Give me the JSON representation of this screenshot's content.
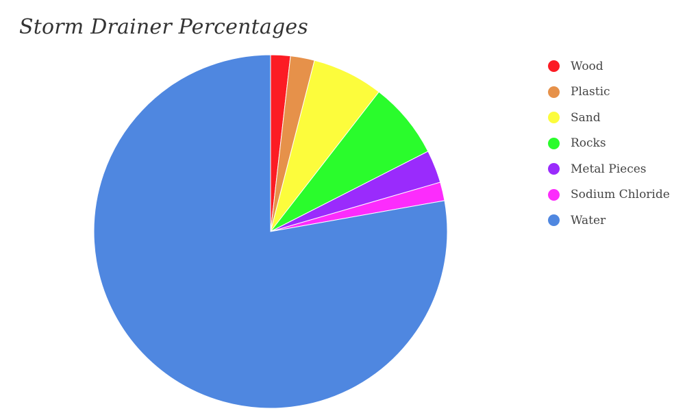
{
  "chart_data": {
    "type": "pie",
    "title": "Storm Drainer Percentages",
    "legend_position": "right",
    "start_angle_deg": 0,
    "slices": [
      {
        "label": "Wood",
        "value": 1.8,
        "color": "#fc1c24"
      },
      {
        "label": "Plastic",
        "value": 2.2,
        "color": "#e6914a"
      },
      {
        "label": "Sand",
        "value": 6.5,
        "color": "#fcfc3c"
      },
      {
        "label": "Rocks",
        "value": 7.0,
        "color": "#2afc2c"
      },
      {
        "label": "Metal Pieces",
        "value": 3.0,
        "color": "#9a2bfc"
      },
      {
        "label": "Sodium Chloride",
        "value": 1.7,
        "color": "#fc2cfc"
      },
      {
        "label": "Water",
        "value": 77.8,
        "color": "#4f87e0"
      }
    ]
  }
}
